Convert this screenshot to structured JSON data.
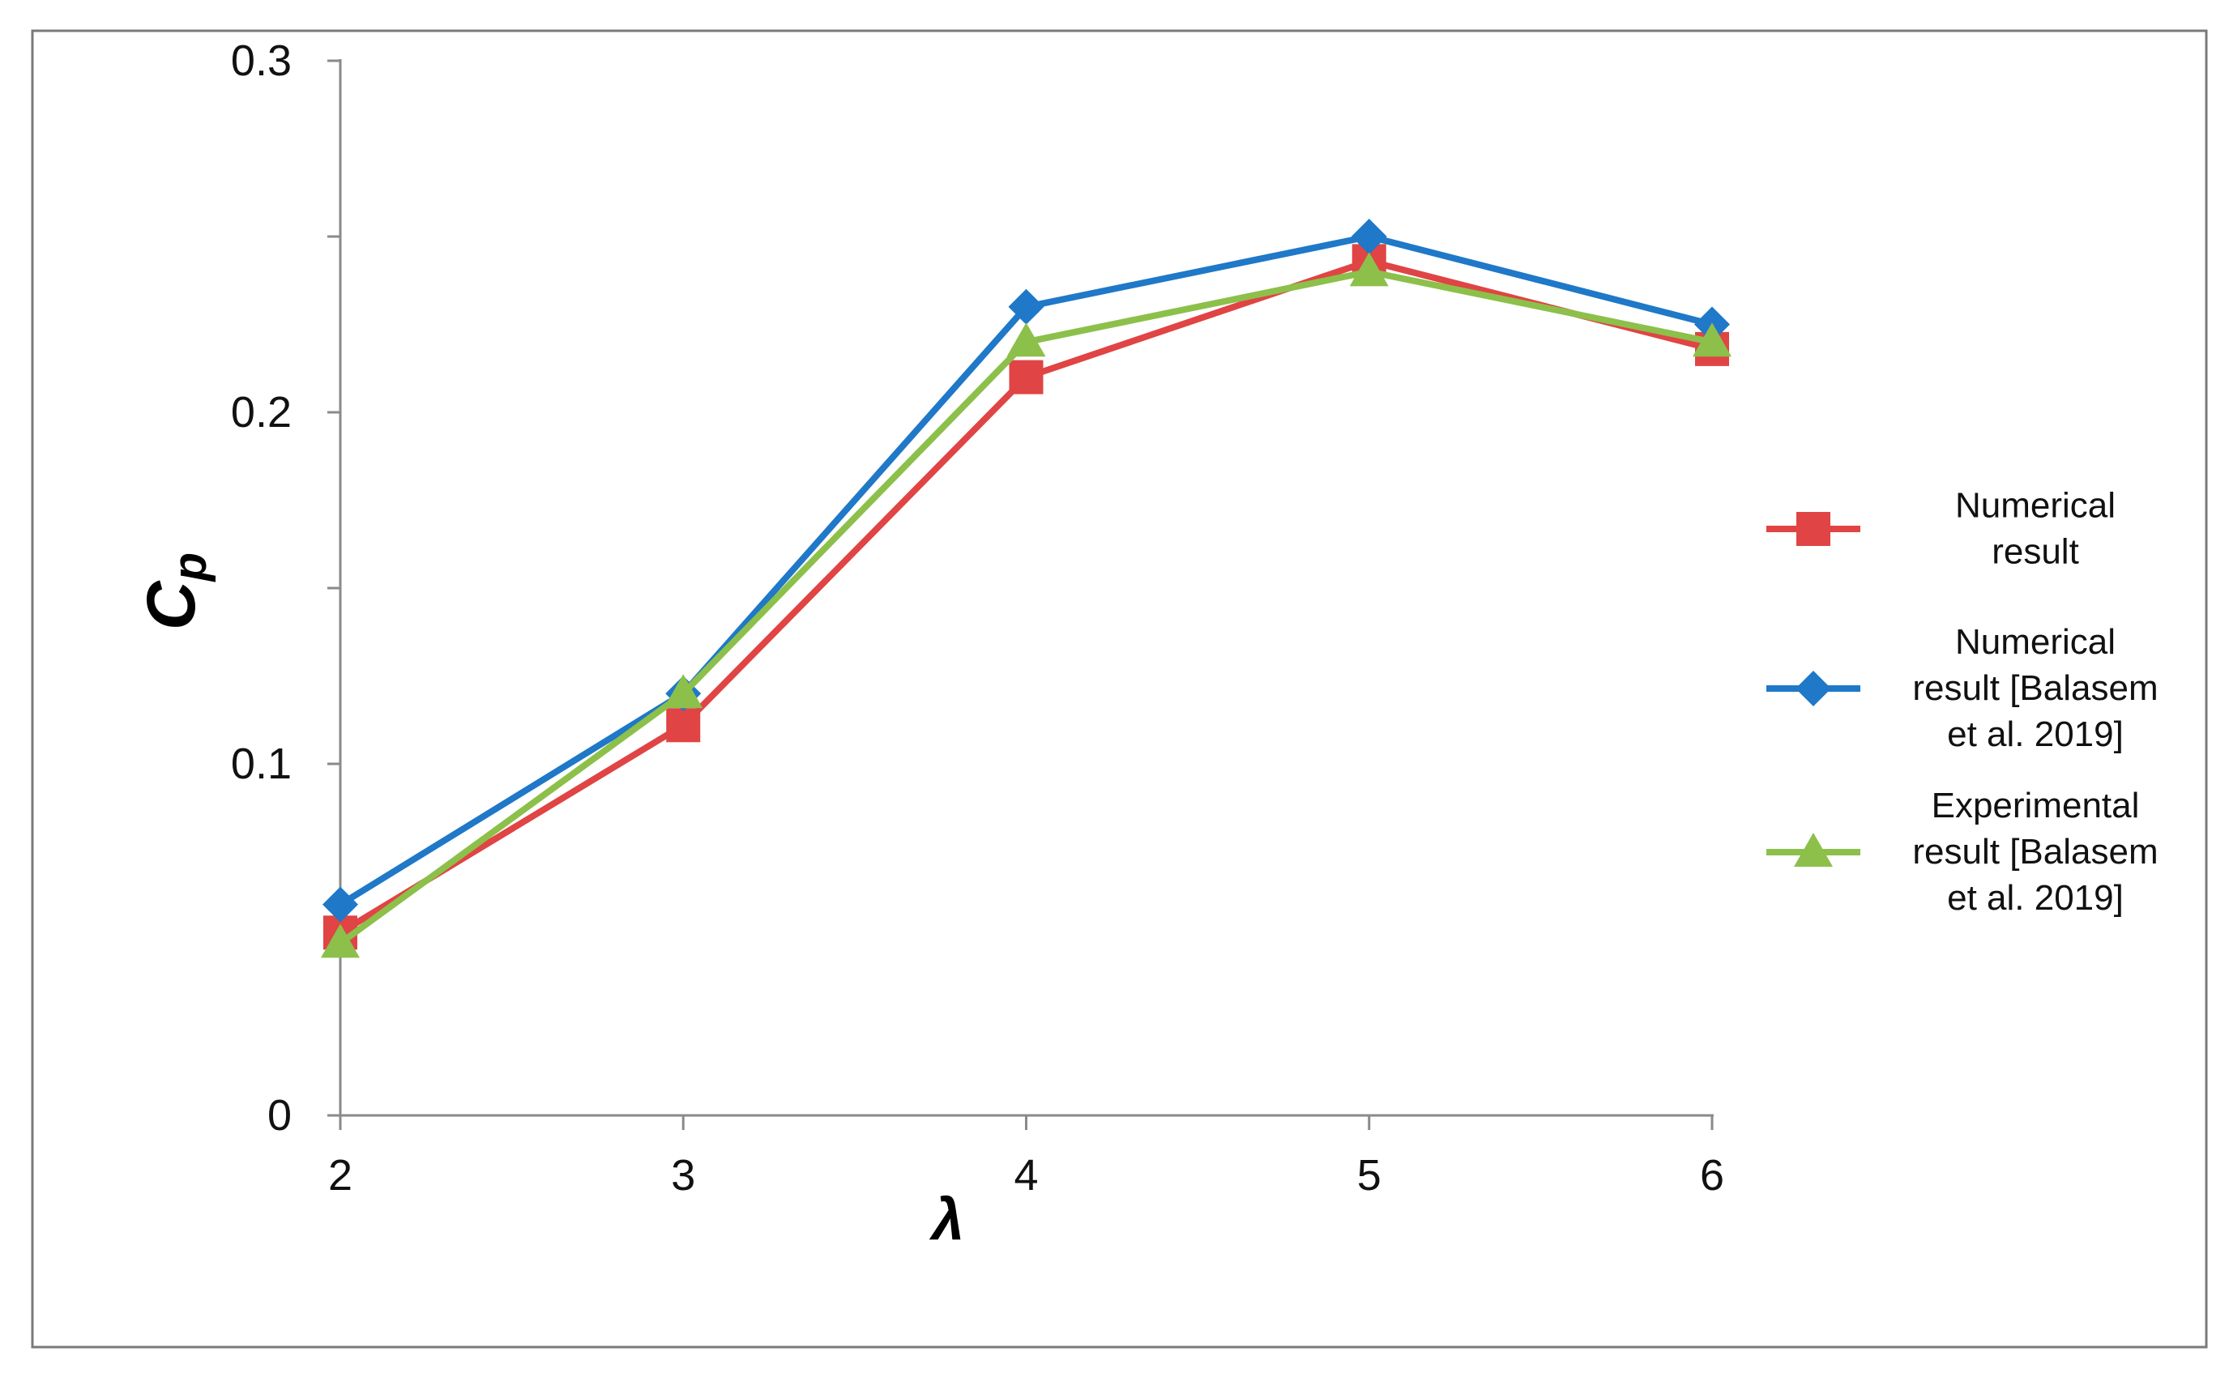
{
  "chart_data": {
    "type": "line",
    "title": "",
    "xlabel": "λ",
    "ylabel_main": "C",
    "ylabel_sub": "p",
    "x": [
      2,
      3,
      4,
      5,
      6
    ],
    "xlim": [
      2,
      6
    ],
    "ylim": [
      0,
      0.3
    ],
    "x_ticks": [
      "2",
      "3",
      "4",
      "5",
      "6"
    ],
    "y_ticks": [
      {
        "value": 0,
        "label": "0"
      },
      {
        "value": 0.1,
        "label": "0.1"
      },
      {
        "value": 0.2,
        "label": "0.2"
      },
      {
        "value": 0.3,
        "label": "0.3"
      }
    ],
    "y_minor_ticks": [
      0.05,
      0.15,
      0.25
    ],
    "grid": false,
    "legend_position": "right",
    "series": [
      {
        "name": "Numerical result",
        "legend_lines": [
          "Numerical",
          "result"
        ],
        "color": "#e04444",
        "marker": "square",
        "values": [
          0.052,
          0.111,
          0.21,
          0.243,
          0.218
        ]
      },
      {
        "name": "Numerical result [Balasem et al. 2019]",
        "legend_lines": [
          "Numerical",
          "result [Balasem",
          "et al. 2019]"
        ],
        "color": "#1f78c8",
        "marker": "diamond",
        "values": [
          0.06,
          0.12,
          0.23,
          0.25,
          0.225
        ]
      },
      {
        "name": "Experimental result [Balasem et al. 2019]",
        "legend_lines": [
          "Experimental",
          "result [Balasem",
          "et al. 2019]"
        ],
        "color": "#8cc04a",
        "marker": "triangle",
        "values": [
          0.049,
          0.12,
          0.22,
          0.24,
          0.22
        ]
      }
    ]
  }
}
